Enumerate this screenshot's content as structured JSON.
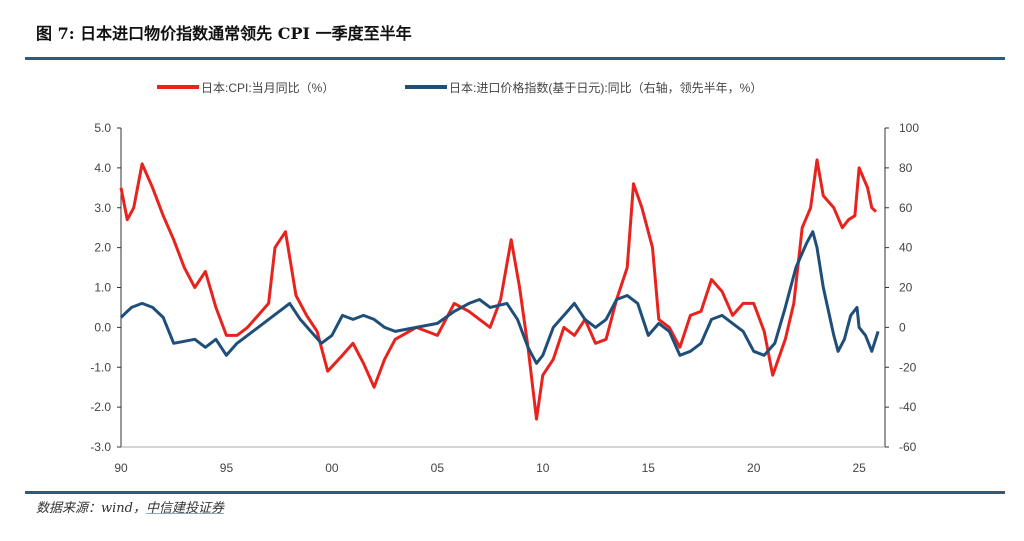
{
  "header": {
    "title": "图 7: 日本进口物价指数通常领先 CPI 一季度至半年"
  },
  "footer": {
    "source_prefix": "数据来源：wind，",
    "source_org": "中信建投证券"
  },
  "chart_data": {
    "type": "line",
    "title": "图 7: 日本进口物价指数通常领先 CPI 一季度至半年",
    "legend_placement": "top",
    "grid": false,
    "x_tick_labels": [
      "90",
      "95",
      "00",
      "05",
      "10",
      "15",
      "20",
      "25"
    ],
    "x_tick_years": [
      1990,
      1995,
      2000,
      2005,
      2010,
      2015,
      2020,
      2025
    ],
    "xlim": [
      1990,
      2026.8
    ],
    "y_left": {
      "lim": [
        -3.0,
        5.0
      ],
      "ticks": [
        "5.0",
        "4.0",
        "3.0",
        "2.0",
        "1.0",
        "0.0",
        "-1.0",
        "-2.0",
        "-3.0"
      ]
    },
    "y_right": {
      "lim": [
        -60,
        100
      ],
      "ticks": [
        "100",
        "80",
        "60",
        "40",
        "20",
        "0",
        "-20",
        "-40",
        "-60"
      ]
    },
    "series": [
      {
        "name": "日本:CPI:当月同比（%）",
        "axis": "left",
        "color": "#e8231e",
        "x": [
          1990.0,
          1990.3,
          1990.6,
          1991.0,
          1991.5,
          1992.0,
          1992.5,
          1993.0,
          1993.5,
          1994.0,
          1994.5,
          1995.0,
          1995.5,
          1996.0,
          1996.5,
          1997.0,
          1997.3,
          1997.8,
          1998.3,
          1998.8,
          1999.3,
          1999.8,
          2000.5,
          2001.0,
          2001.5,
          2002.0,
          2002.5,
          2003.0,
          2004.0,
          2005.0,
          2005.8,
          2006.5,
          2007.5,
          2008.0,
          2008.5,
          2008.9,
          2009.3,
          2009.7,
          2010.0,
          2010.5,
          2011.0,
          2011.5,
          2012.0,
          2012.5,
          2013.0,
          2013.5,
          2014.0,
          2014.3,
          2014.7,
          2015.2,
          2015.5,
          2016.0,
          2016.5,
          2017.0,
          2017.5,
          2018.0,
          2018.5,
          2019.0,
          2019.5,
          2020.0,
          2020.5,
          2020.9,
          2021.5,
          2021.9,
          2022.3,
          2022.7,
          2023.0,
          2023.3,
          2023.8,
          2024.2,
          2024.5,
          2024.8,
          2025.0,
          2025.4,
          2025.6,
          2025.8
        ],
        "y": [
          3.5,
          2.7,
          3.0,
          4.1,
          3.5,
          2.8,
          2.2,
          1.5,
          1.0,
          1.4,
          0.5,
          -0.2,
          -0.2,
          0.0,
          0.3,
          0.6,
          2.0,
          2.4,
          0.8,
          0.3,
          -0.1,
          -1.1,
          -0.7,
          -0.4,
          -0.9,
          -1.5,
          -0.8,
          -0.3,
          0.0,
          -0.2,
          0.6,
          0.4,
          0.0,
          0.7,
          2.2,
          1.0,
          -0.5,
          -2.3,
          -1.2,
          -0.8,
          0.0,
          -0.2,
          0.2,
          -0.4,
          -0.3,
          0.7,
          1.5,
          3.6,
          3.0,
          2.0,
          0.2,
          0.0,
          -0.5,
          0.3,
          0.4,
          1.2,
          0.9,
          0.3,
          0.6,
          0.6,
          -0.1,
          -1.2,
          -0.3,
          0.6,
          2.5,
          3.0,
          4.2,
          3.3,
          3.0,
          2.5,
          2.7,
          2.8,
          4.0,
          3.5,
          3.0,
          2.9
        ]
      },
      {
        "name": "日本:进口价格指数(基于日元):同比（右轴，领先半年，%）",
        "axis": "right",
        "color": "#1f4e79",
        "x": [
          1990.0,
          1990.5,
          1991.0,
          1991.5,
          1992.0,
          1992.5,
          1993.5,
          1994.0,
          1994.5,
          1995.0,
          1995.5,
          1996.0,
          1996.5,
          1997.0,
          1997.5,
          1998.0,
          1998.5,
          1999.0,
          1999.5,
          2000.0,
          2000.5,
          2001.0,
          2001.5,
          2002.0,
          2002.5,
          2003.0,
          2004.0,
          2005.0,
          2005.8,
          2006.5,
          2007.0,
          2007.5,
          2008.3,
          2008.8,
          2009.3,
          2009.7,
          2010.0,
          2010.5,
          2011.0,
          2011.5,
          2012.0,
          2012.5,
          2013.0,
          2013.5,
          2014.0,
          2014.5,
          2015.0,
          2015.5,
          2016.0,
          2016.5,
          2017.0,
          2017.5,
          2018.0,
          2018.5,
          2019.0,
          2019.5,
          2020.0,
          2020.5,
          2021.0,
          2021.5,
          2022.0,
          2022.5,
          2022.8,
          2023.0,
          2023.3,
          2023.8,
          2024.0,
          2024.3,
          2024.6,
          2024.9,
          2025.0,
          2025.3,
          2025.6,
          2025.9
        ],
        "y": [
          5,
          10,
          12,
          10,
          5,
          -8,
          -6,
          -10,
          -6,
          -14,
          -8,
          -4,
          0,
          4,
          8,
          12,
          4,
          -2,
          -8,
          -4,
          6,
          4,
          6,
          4,
          0,
          -2,
          0,
          2,
          8,
          12,
          14,
          10,
          12,
          4,
          -10,
          -18,
          -14,
          0,
          6,
          12,
          4,
          0,
          4,
          14,
          16,
          12,
          -4,
          2,
          -2,
          -14,
          -12,
          -8,
          4,
          6,
          2,
          -2,
          -12,
          -14,
          -8,
          10,
          30,
          42,
          48,
          40,
          20,
          -4,
          -12,
          -6,
          6,
          10,
          0,
          -4,
          -12,
          -2
        ]
      }
    ]
  }
}
